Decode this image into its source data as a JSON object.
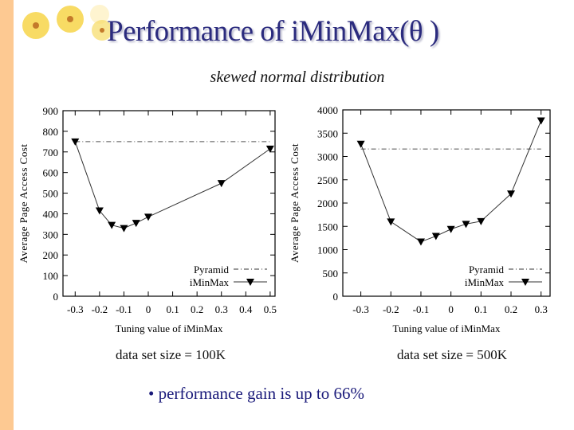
{
  "slide": {
    "title": "Performance of iMinMax(θ )",
    "subtitle": "skewed normal distribution",
    "captions": [
      "data set size = 100K",
      "data set size = 500K"
    ],
    "bullet": "• performance gain is up to 66%",
    "accent_strip_color": "#fdc992",
    "title_color": "#2b2b7e"
  },
  "chart_data": [
    {
      "type": "line",
      "xlabel": "Tuning value of iMinMax",
      "ylabel": "Average Page Access Cost",
      "xlim": [
        -0.35,
        0.52
      ],
      "ylim": [
        0,
        900
      ],
      "xticks": [
        "-0.3",
        "-0.2",
        "-0.1",
        "0",
        "0.1",
        "0.2",
        "0.3",
        "0.4",
        "0.5"
      ],
      "yticks": [
        "0",
        "100",
        "200",
        "300",
        "400",
        "500",
        "600",
        "700",
        "800",
        "900"
      ],
      "legend": "bottom-right",
      "grid": false,
      "series": [
        {
          "name": "Pyramid",
          "style": "dash-dot",
          "x": [
            -0.3,
            0.5
          ],
          "y": [
            750,
            750
          ]
        },
        {
          "name": "iMinMax",
          "style": "solid-triangle",
          "x": [
            -0.3,
            -0.2,
            -0.15,
            -0.1,
            -0.05,
            0,
            0.3,
            0.5
          ],
          "y": [
            750,
            415,
            345,
            330,
            355,
            385,
            548,
            715
          ]
        }
      ]
    },
    {
      "type": "line",
      "xlabel": "Tuning value of iMinMax",
      "ylabel": "Average Page Access Cost",
      "xlim": [
        -0.36,
        0.33
      ],
      "ylim": [
        0,
        4000
      ],
      "xticks": [
        "-0.3",
        "-0.2",
        "-0.1",
        "0",
        "0.1",
        "0.2",
        "0.3"
      ],
      "yticks": [
        "0",
        "500",
        "1000",
        "1500",
        "2000",
        "2500",
        "3000",
        "3500",
        "4000"
      ],
      "legend": "bottom-right",
      "grid": false,
      "series": [
        {
          "name": "Pyramid",
          "style": "dash-dot",
          "x": [
            -0.3,
            0.3
          ],
          "y": [
            3160,
            3160
          ]
        },
        {
          "name": "iMinMax",
          "style": "solid-triangle",
          "x": [
            -0.3,
            -0.2,
            -0.1,
            -0.05,
            0,
            0.05,
            0.1,
            0.2,
            0.3
          ],
          "y": [
            3270,
            1600,
            1170,
            1290,
            1440,
            1550,
            1610,
            2200,
            3770
          ]
        }
      ]
    }
  ]
}
